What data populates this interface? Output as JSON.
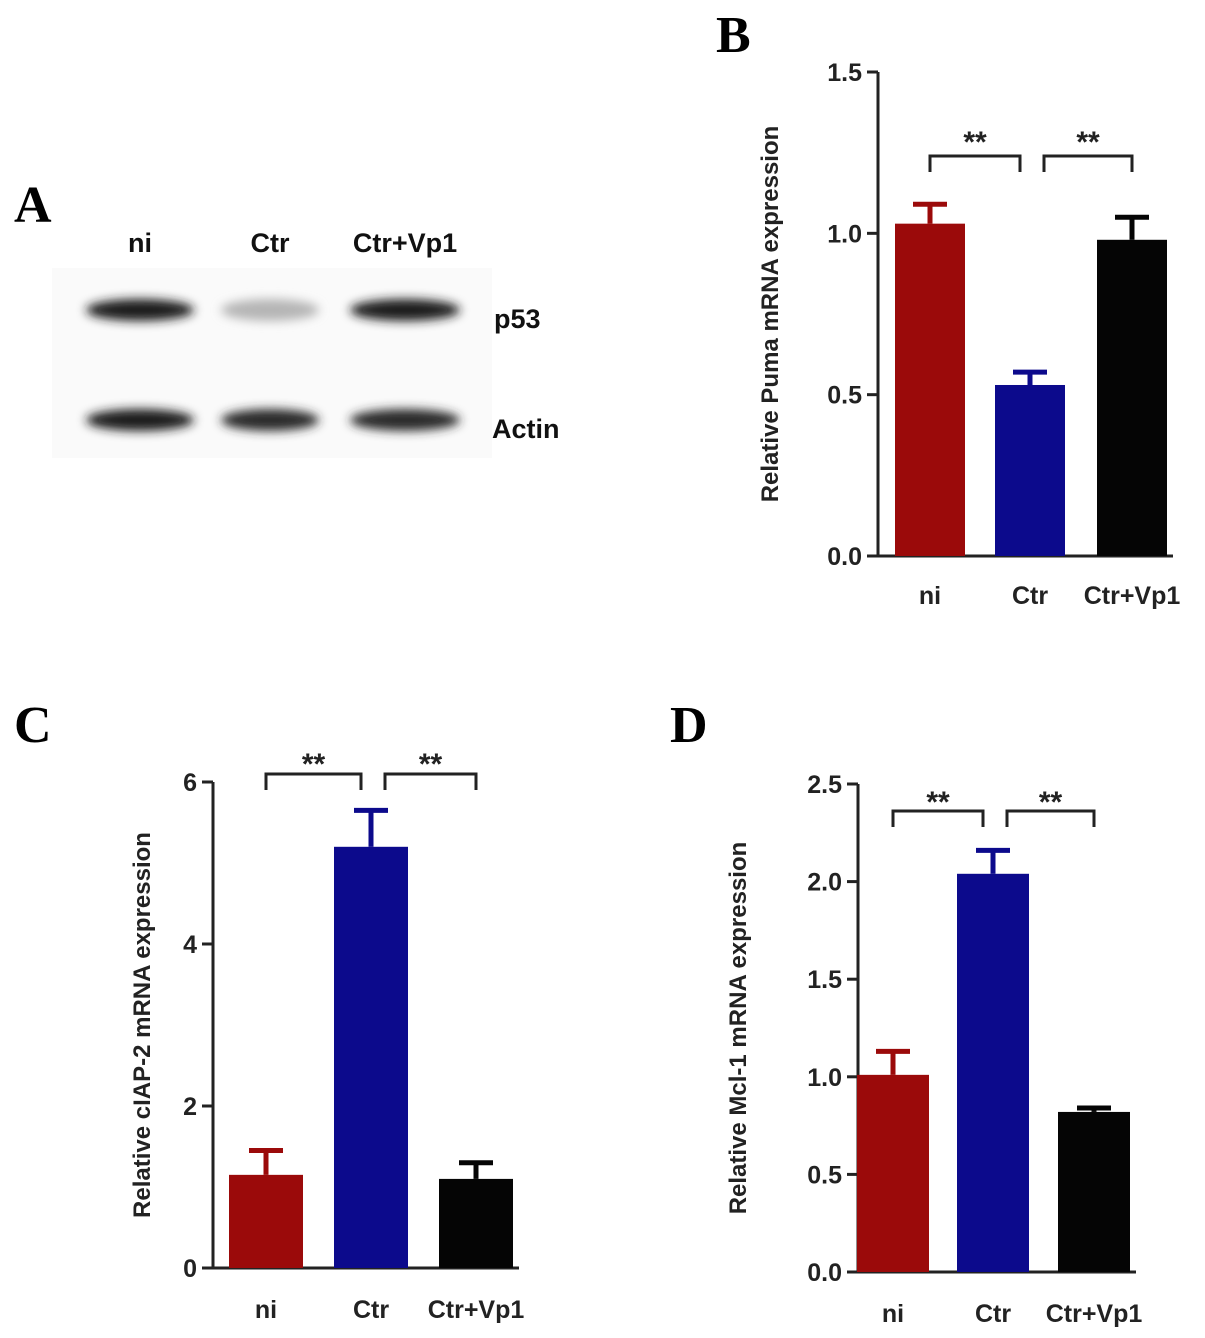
{
  "panels": {
    "A": {
      "letter": "A",
      "lanes": [
        "ni",
        "Ctr",
        "Ctr+Vp1"
      ],
      "bands": [
        {
          "label": "p53",
          "intensity": [
            0.95,
            0.25,
            0.95
          ]
        },
        {
          "label": "Actin",
          "intensity": [
            0.95,
            0.9,
            0.9
          ]
        }
      ]
    },
    "B": {
      "letter": "B"
    },
    "C": {
      "letter": "C"
    },
    "D": {
      "letter": "D"
    }
  },
  "colors": {
    "ni": "#9b0a0a",
    "ctr": "#0c0a8c",
    "ctr_vp1": "#050505"
  },
  "chart_data": [
    {
      "panel": "B",
      "type": "bar",
      "categories": [
        "ni",
        "Ctr",
        "Ctr+Vp1"
      ],
      "values": [
        1.03,
        0.53,
        0.98
      ],
      "errors": [
        0.06,
        0.04,
        0.07
      ],
      "ylabel": "Relative Puma mRNA expression",
      "ylim": [
        0,
        1.5
      ],
      "yticks": [
        "0.0",
        "0.5",
        "1.0",
        "1.5"
      ],
      "significance": [
        {
          "from": 0,
          "to": 1,
          "label": "**"
        },
        {
          "from": 1,
          "to": 2,
          "label": "**"
        }
      ]
    },
    {
      "panel": "C",
      "type": "bar",
      "categories": [
        "ni",
        "Ctr",
        "Ctr+Vp1"
      ],
      "values": [
        1.15,
        5.2,
        1.1
      ],
      "errors": [
        0.3,
        0.45,
        0.2
      ],
      "ylabel": "Relative cIAP-2 mRNA expression",
      "ylim": [
        0,
        6
      ],
      "yticks": [
        "0",
        "2",
        "4",
        "6"
      ],
      "significance": [
        {
          "from": 0,
          "to": 1,
          "label": "**"
        },
        {
          "from": 1,
          "to": 2,
          "label": "**"
        }
      ]
    },
    {
      "panel": "D",
      "type": "bar",
      "categories": [
        "ni",
        "Ctr",
        "Ctr+Vp1"
      ],
      "values": [
        1.01,
        2.04,
        0.82
      ],
      "errors": [
        0.12,
        0.12,
        0.02
      ],
      "ylabel": "Relative Mcl-1 mRNA expression",
      "ylim": [
        0,
        2.5
      ],
      "yticks": [
        "0.0",
        "0.5",
        "1.0",
        "1.5",
        "2.0",
        "2.5"
      ],
      "significance": [
        {
          "from": 0,
          "to": 1,
          "label": "**"
        },
        {
          "from": 1,
          "to": 2,
          "label": "**"
        }
      ]
    }
  ]
}
